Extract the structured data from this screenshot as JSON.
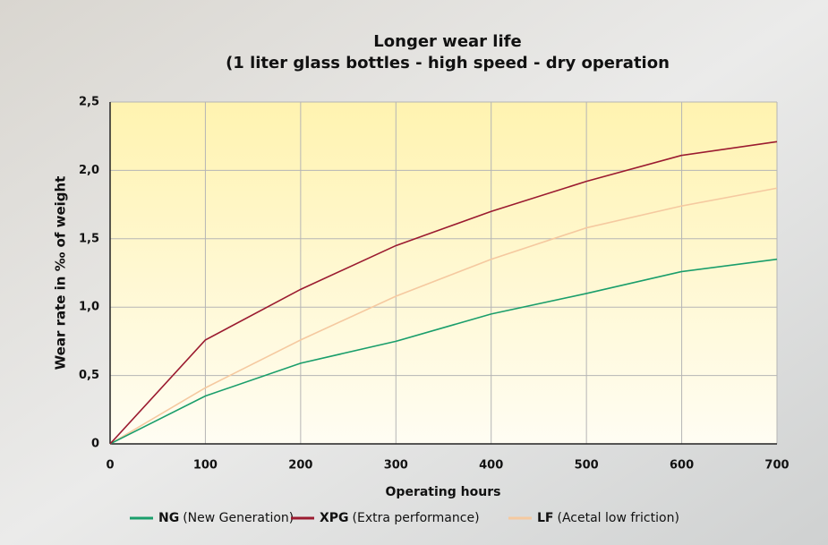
{
  "chart_data": {
    "type": "line",
    "title": "Longer wear life",
    "subtitle": "(1 liter glass bottles - high speed - dry operation",
    "x_label": "Operating hours",
    "y_label": "Wear rate in ‰ of weight",
    "x": [
      0,
      100,
      200,
      300,
      400,
      500,
      600,
      700
    ],
    "series": [
      {
        "name": "NG",
        "description": "(New Generation)",
        "color": "#1a9e6b",
        "values": [
          0,
          0.35,
          0.59,
          0.75,
          0.95,
          1.1,
          1.26,
          1.35
        ]
      },
      {
        "name": "XPG",
        "description": "(Extra performance)",
        "color": "#9b1b30",
        "values": [
          0,
          0.76,
          1.13,
          1.45,
          1.7,
          1.92,
          2.11,
          2.21
        ]
      },
      {
        "name": "LF",
        "description": "(Acetal low friction)",
        "color": "#f5c9a0",
        "values": [
          0,
          0.41,
          0.76,
          1.08,
          1.35,
          1.58,
          1.74,
          1.87
        ]
      }
    ],
    "xlim": [
      0,
      700
    ],
    "xticks": [
      0,
      100,
      200,
      300,
      400,
      500,
      600,
      700
    ],
    "ylim": [
      0,
      2.5
    ],
    "yticks": [
      0,
      {
        "value": 0.5,
        "label": "0,5"
      },
      {
        "value": 1,
        "label": "1,0"
      },
      {
        "value": 1.5,
        "label": "1,5"
      },
      {
        "value": 2,
        "label": "2,0"
      },
      {
        "value": 2.5,
        "label": "2,5"
      }
    ],
    "grid": true
  }
}
